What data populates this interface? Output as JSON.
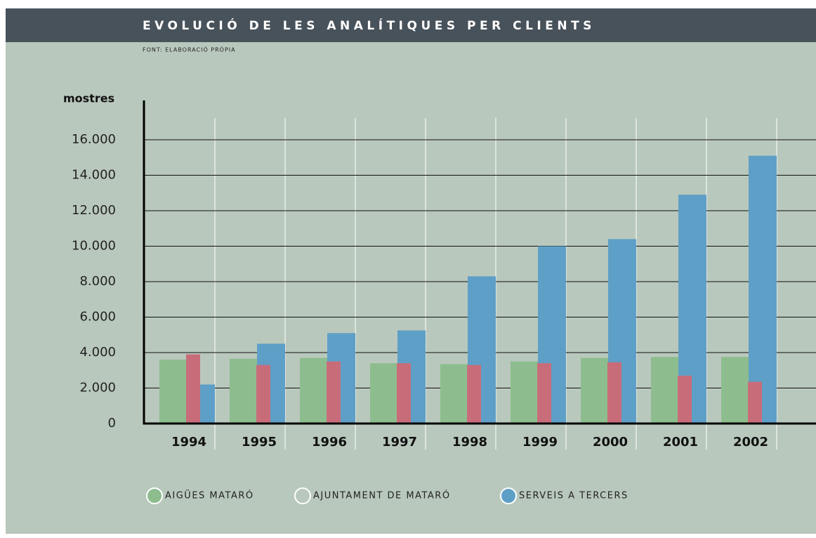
{
  "chart_data": {
    "type": "bar",
    "title": "EVOLUCIÓ DE LES ANALÍTIQUES PER CLIENTS",
    "subtitle": "FONT: ELABORACIÓ PRÒPIA",
    "y_label": "mostres",
    "categories": [
      "1994",
      "1995",
      "1996",
      "1997",
      "1998",
      "1999",
      "2000",
      "2001",
      "2002"
    ],
    "series": [
      {
        "name": "AIGÜES MATARÓ",
        "color": "#8dbd8e",
        "values": [
          3600,
          3650,
          3700,
          3400,
          3350,
          3500,
          3700,
          3750,
          3750
        ]
      },
      {
        "name": "AJUNTAMENT DE MATARÓ",
        "color": "#c96c7a",
        "legend_color": "#b9c8bd",
        "values": [
          3900,
          3300,
          3500,
          3400,
          3300,
          3400,
          3450,
          2700,
          2350
        ]
      },
      {
        "name": "SERVEIS A TERCERS",
        "color": "#5e9fc7",
        "values": [
          2200,
          4500,
          5100,
          5250,
          8300,
          10000,
          10400,
          12900,
          15100
        ]
      }
    ],
    "ylim": [
      0,
      18000
    ],
    "yticks": [
      0,
      {
        "value": 2000,
        "label": "2.000"
      },
      {
        "value": 4000,
        "label": "4.000"
      },
      {
        "value": 6000,
        "label": "6.000"
      },
      {
        "value": 8000,
        "label": "8.000"
      },
      {
        "value": 10000,
        "label": "10.000"
      },
      {
        "value": 12000,
        "label": "12.000"
      },
      {
        "value": 14000,
        "label": "14.000"
      },
      {
        "value": 16000,
        "label": "16.000"
      }
    ],
    "grid": true
  }
}
